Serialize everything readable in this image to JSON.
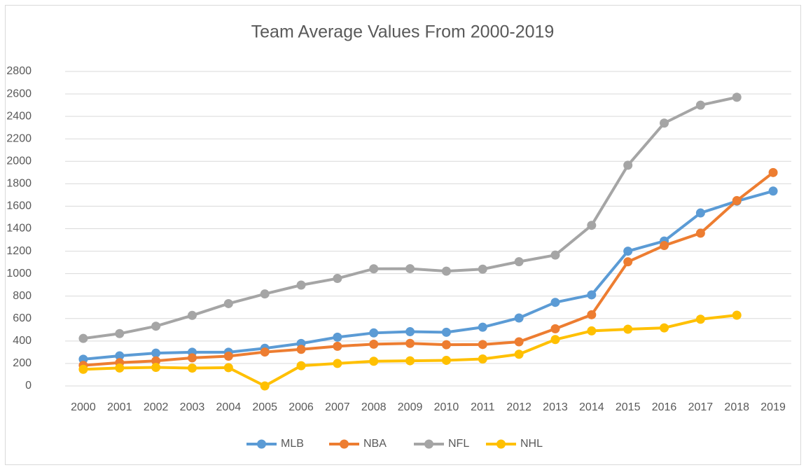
{
  "chart_data": {
    "type": "line",
    "title": "Team Average Values From 2000-2019",
    "categories": [
      "2000",
      "2001",
      "2002",
      "2003",
      "2004",
      "2005",
      "2006",
      "2007",
      "2008",
      "2009",
      "2010",
      "2011",
      "2012",
      "2013",
      "2014",
      "2015",
      "2016",
      "2017",
      "2018",
      "2019"
    ],
    "series": [
      {
        "name": "MLB",
        "color": "#5b9bd5",
        "values": [
          238,
          268,
          292,
          300,
          300,
          335,
          378,
          434,
          472,
          483,
          478,
          523,
          605,
          744,
          811,
          1200,
          1290,
          1540,
          1645,
          1735
        ]
      },
      {
        "name": "NBA",
        "color": "#ed7d31",
        "values": [
          183,
          207,
          223,
          250,
          265,
          302,
          326,
          353,
          372,
          379,
          367,
          369,
          393,
          509,
          634,
          1105,
          1250,
          1360,
          1650,
          1900
        ]
      },
      {
        "name": "NFL",
        "color": "#a5a5a5",
        "values": [
          423,
          466,
          532,
          628,
          733,
          819,
          898,
          957,
          1043,
          1044,
          1022,
          1040,
          1106,
          1165,
          1430,
          1965,
          2340,
          2500,
          2570,
          null
        ]
      },
      {
        "name": "NHL",
        "color": "#ffc000",
        "values": [
          148,
          160,
          165,
          159,
          163,
          0,
          180,
          200,
          220,
          224,
          228,
          240,
          282,
          413,
          490,
          505,
          517,
          594,
          630,
          null
        ]
      }
    ],
    "ylim": [
      0,
      2800
    ],
    "yticks": [
      0,
      200,
      400,
      600,
      800,
      1000,
      1200,
      1400,
      1600,
      1800,
      2000,
      2200,
      2400,
      2600,
      2800
    ],
    "grid": true,
    "legend": "bottom"
  }
}
